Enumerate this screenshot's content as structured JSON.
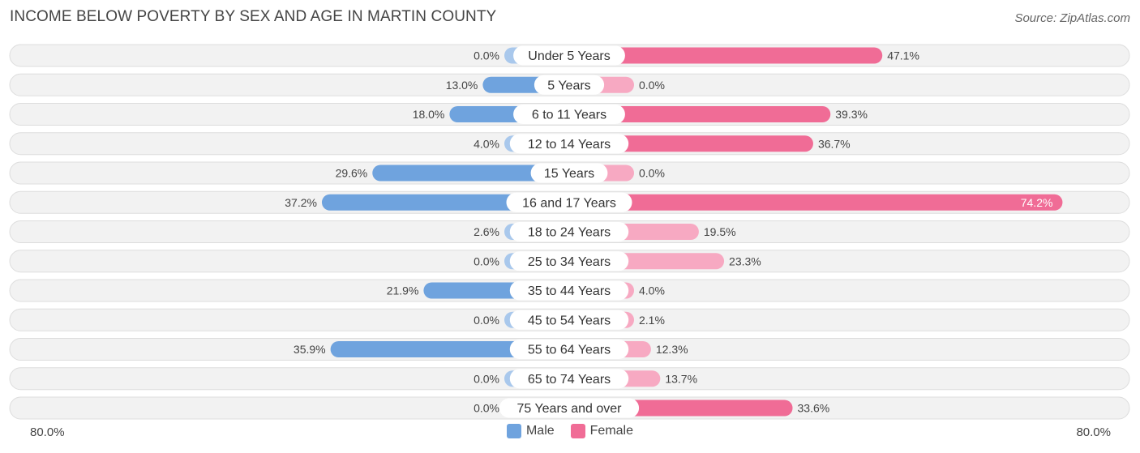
{
  "header": {
    "title": "INCOME BELOW POVERTY BY SEX AND AGE IN MARTIN COUNTY",
    "source": "Source: ZipAtlas.com"
  },
  "colors": {
    "male": "#6fa3de",
    "male_light": "#a9c8ec",
    "female": "#f06c96",
    "female_light": "#f7a9c2",
    "row_bg": "#f2f2f2",
    "row_border": "#dddddd"
  },
  "chart_data": {
    "type": "bar",
    "orientation": "horizontal-diverging",
    "title": "INCOME BELOW POVERTY BY SEX AND AGE IN MARTIN COUNTY",
    "categories": [
      "Under 5 Years",
      "5 Years",
      "6 to 11 Years",
      "12 to 14 Years",
      "15 Years",
      "16 and 17 Years",
      "18 to 24 Years",
      "25 to 34 Years",
      "35 to 44 Years",
      "45 to 54 Years",
      "55 to 64 Years",
      "65 to 74 Years",
      "75 Years and over"
    ],
    "series": [
      {
        "name": "Male",
        "values": [
          0.0,
          13.0,
          18.0,
          4.0,
          29.6,
          37.2,
          2.6,
          0.0,
          21.9,
          0.0,
          35.9,
          0.0,
          0.0
        ],
        "labels": [
          "0.0%",
          "13.0%",
          "18.0%",
          "4.0%",
          "29.6%",
          "37.2%",
          "2.6%",
          "0.0%",
          "21.9%",
          "0.0%",
          "35.9%",
          "0.0%",
          "0.0%"
        ]
      },
      {
        "name": "Female",
        "values": [
          47.1,
          0.0,
          39.3,
          36.7,
          0.0,
          74.2,
          19.5,
          23.3,
          4.0,
          2.1,
          12.3,
          13.7,
          33.6
        ],
        "labels": [
          "47.1%",
          "0.0%",
          "39.3%",
          "36.7%",
          "0.0%",
          "74.2%",
          "19.5%",
          "23.3%",
          "4.0%",
          "2.1%",
          "12.3%",
          "13.7%",
          "33.6%"
        ]
      }
    ],
    "xlim": [
      -80,
      80
    ],
    "axis_left_label": "80.0%",
    "axis_right_label": "80.0%",
    "legend": [
      "Male",
      "Female"
    ],
    "legend_position": "bottom-center"
  }
}
